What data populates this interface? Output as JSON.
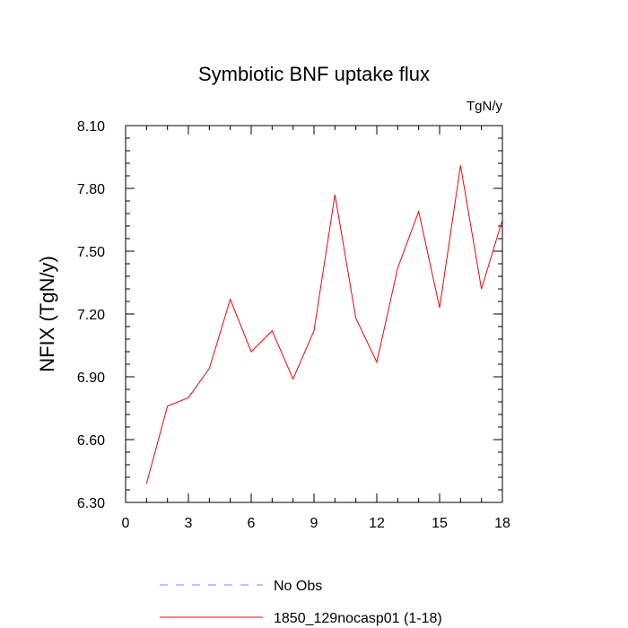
{
  "chart_data": {
    "type": "line",
    "title": "Symbiotic BNF uptake flux",
    "units_label": "TgN/y",
    "ylabel": "NFIX  (TgN/y)",
    "xlabel": "",
    "xlim": [
      0,
      18
    ],
    "ylim": [
      6.3,
      8.1
    ],
    "x_ticks": [
      "0",
      "3",
      "6",
      "9",
      "12",
      "15",
      "18"
    ],
    "y_ticks": [
      "6.30",
      "6.60",
      "6.90",
      "7.20",
      "7.50",
      "7.80",
      "8.10"
    ],
    "grid": false,
    "series": [
      {
        "name": "1850_129nocasp01 (1-18)",
        "color": "#ff0000",
        "x": [
          1,
          2,
          3,
          4,
          5,
          6,
          7,
          8,
          9,
          10,
          11,
          12,
          13,
          14,
          15,
          16,
          17,
          18
        ],
        "y": [
          6.39,
          6.76,
          6.8,
          6.94,
          7.27,
          7.02,
          7.12,
          6.89,
          7.12,
          7.77,
          7.18,
          6.97,
          7.42,
          7.69,
          7.23,
          7.91,
          7.32,
          7.65
        ]
      }
    ],
    "legend": {
      "placement": "bottom",
      "entries": [
        {
          "label": "No Obs",
          "color": "#8080ff",
          "style": "dashed"
        },
        {
          "label": "1850_129nocasp01 (1-18)",
          "color": "#ff0000",
          "style": "solid"
        }
      ]
    }
  }
}
